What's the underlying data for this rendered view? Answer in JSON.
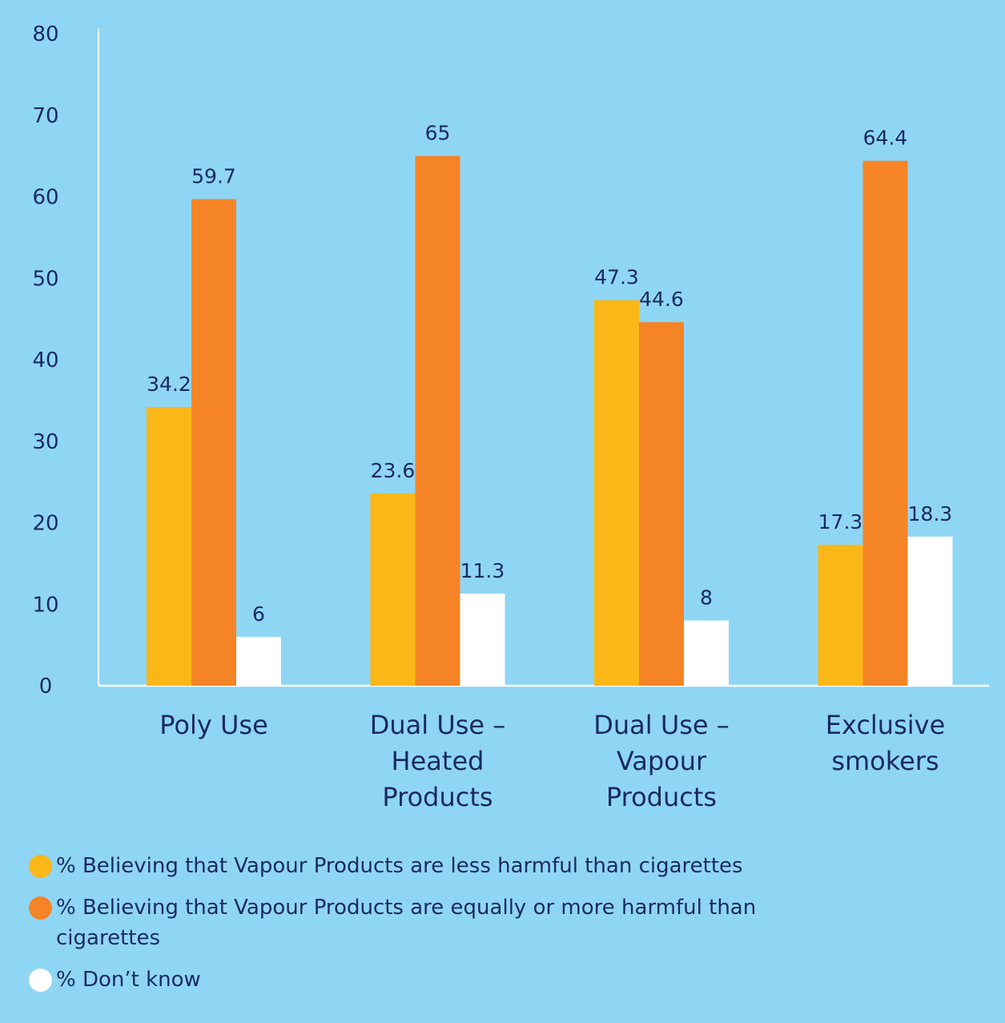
{
  "chart_data": {
    "type": "bar",
    "title": "",
    "xlabel": "",
    "ylabel": "",
    "ylim": [
      0,
      80
    ],
    "yticks": [
      0,
      10,
      20,
      30,
      40,
      50,
      60,
      70,
      80
    ],
    "grid": false,
    "legend_position": "bottom",
    "categories": [
      [
        "Poly Use"
      ],
      [
        "Dual Use –",
        "Heated",
        "Products"
      ],
      [
        "Dual Use –",
        "Vapour",
        "Products"
      ],
      [
        "Exclusive",
        "smokers"
      ]
    ],
    "series": [
      {
        "name": "% Believing that Vapour Products are less harmful than cigarettes",
        "color": "#fbb717",
        "values": [
          34.2,
          23.6,
          47.3,
          17.3
        ],
        "labels": [
          "34.2",
          "23.6",
          "47.3",
          "17.3"
        ]
      },
      {
        "name": "% Believing that Vapour Products are equally or more harmful than cigarettes",
        "color": "#f58426",
        "values": [
          59.7,
          65,
          44.6,
          64.4
        ],
        "labels": [
          "59.7",
          "65",
          "44.6",
          "64.4"
        ]
      },
      {
        "name": "% Don’t know",
        "color": "#ffffff",
        "values": [
          6,
          11.3,
          8,
          18.3
        ],
        "labels": [
          "6",
          "11.3",
          "8",
          "18.3"
        ]
      }
    ]
  },
  "colors": {
    "background": "#8fd6f4",
    "text": "#1a2a5e",
    "axis": "#ffffff"
  }
}
